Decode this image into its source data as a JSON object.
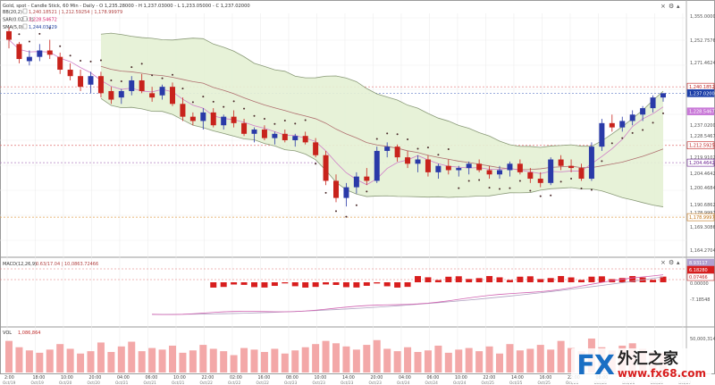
{
  "header": {
    "title": "Gold, spot - Candle Stick, 60 Min - Daily - O 1,235.28000 - H 1,237.03000 - L 1,233.05000 - C 1,237.02000",
    "indicators": [
      {
        "label": "BB(20,2)",
        "values": "1,240.18521 | 1,212.59254 | 1,178.99979",
        "color": "#b04040"
      },
      {
        "label": "SAR(0.02,0.2)",
        "values": "1,228.54672",
        "color": "#d81e6a"
      },
      {
        "label": "SMA(5,0)",
        "values": "1,244.03429",
        "color": "#2040a0"
      }
    ],
    "icon_names": [
      "close-icon",
      "gear-icon",
      "eye-icon"
    ]
  },
  "main_panel": {
    "price_labels": [
      "1,355.00006",
      "1,252.75767",
      "1,271.46246",
      "1,252.01216",
      "1,240.18521",
      "1,237.02000",
      "1,228.54672",
      "1,219.91021",
      "1,212.59254",
      "1,204.46429",
      "1,200.46845",
      "1,190.68622",
      "1,178.99979",
      "1,169.30863",
      "1,164.27044"
    ],
    "tags": [
      {
        "text": "1,240.18521",
        "bg": "#ffffff",
        "fg": "#c02020",
        "border": "#c02020"
      },
      {
        "text": "1,237.02000",
        "bg": "#1c3fa8",
        "fg": "#ffffff",
        "border": "#1c3fa8"
      },
      {
        "text": "1,228.54672",
        "bg": "#c97ad8",
        "fg": "#ffffff",
        "border": "#c97ad8"
      },
      {
        "text": "1,212.59254",
        "bg": "#ffffff",
        "fg": "#c02020",
        "border": "#c02020"
      },
      {
        "text": "1,204.46429",
        "bg": "#ffffff",
        "fg": "#6a1f8f",
        "border": "#6a1f8f"
      },
      {
        "text": "1,178.99979",
        "bg": "#ffffff",
        "fg": "#c07010",
        "border": "#c07010"
      }
    ]
  },
  "macd_panel": {
    "title": "MACD(12,26,9)",
    "values": "0.63/17.04 | 10,0863.72466",
    "scale_labels": [
      "4.1635",
      "0.00000",
      "-7.18548"
    ],
    "tags": [
      {
        "text": "8.93117",
        "bg": "#b0a0d0",
        "fg": "#ffffff"
      },
      {
        "text": "6.18280",
        "bg": "#d81e1e",
        "fg": "#ffffff"
      },
      {
        "text": "0.07466",
        "bg": "#ffffff",
        "fg": "#c02020"
      }
    ],
    "icon_names": [
      "close-icon",
      "gear-icon",
      "eye-icon"
    ]
  },
  "volume_panel": {
    "title": "VOL",
    "value": "1,086,864",
    "scale_labels": [
      "50,000,314"
    ]
  },
  "x_axis": {
    "labels": [
      {
        "time": "2:00",
        "date": "Oct/19"
      },
      {
        "time": "18:00",
        "date": "Oct/19"
      },
      {
        "time": "10:00",
        "date": "Oct/20"
      },
      {
        "time": "20:00",
        "date": "Oct/20"
      },
      {
        "time": "04:00",
        "date": "Oct/21"
      },
      {
        "time": "06:00",
        "date": "Oct/21"
      },
      {
        "time": "10:00",
        "date": "Oct/21"
      },
      {
        "time": "22:00",
        "date": "Oct/22"
      },
      {
        "time": "02:00",
        "date": "Oct/22"
      },
      {
        "time": "16:00",
        "date": "Oct/22"
      },
      {
        "time": "08:00",
        "date": "Oct/23"
      },
      {
        "time": "10:00",
        "date": "Oct/23"
      },
      {
        "time": "14:00",
        "date": "Oct/23"
      },
      {
        "time": "20:00",
        "date": "Oct/23"
      },
      {
        "time": "04:00",
        "date": "Oct/24"
      },
      {
        "time": "06:00",
        "date": "Oct/24"
      },
      {
        "time": "10:00",
        "date": "Oct/24"
      },
      {
        "time": "22:00",
        "date": "Oct/25"
      },
      {
        "time": "14:00",
        "date": "Oct/25"
      },
      {
        "time": "16:00",
        "date": "Oct/25"
      },
      {
        "time": "22:00",
        "date": "Oct/26"
      },
      {
        "time": "08:00",
        "date": "Oct/26"
      },
      {
        "time": "14:00",
        "date": "Oct/26"
      },
      {
        "time": "02:00",
        "date": "Oct/26"
      },
      {
        "time": "14:00",
        "date": "Oct/27"
      }
    ]
  },
  "watermark": {
    "fx": "FX",
    "cn": "外汇之家",
    "url": "www.fx68.com"
  },
  "colors": {
    "bull": "#2a3aa8",
    "bear": "#c8231c",
    "band_fill": "#e4f1d4",
    "band_line": "#8a9a78",
    "sar": "#4a2a2a",
    "sma": "#d080c8",
    "mid": "#b07070",
    "volume": "#f3a8a8",
    "macd_hist": "#d81e1e",
    "macd_line": "#d060b0",
    "macd_signal": "#b0a0c0",
    "grid_red": "#e07070"
  },
  "chart_data": {
    "type": "candlestick",
    "y_range": [
      1164,
      1271
    ],
    "candles": [
      [
        1266,
        1268,
        1258,
        1262
      ],
      [
        1260,
        1261,
        1251,
        1253
      ],
      [
        1252,
        1257,
        1250,
        1254
      ],
      [
        1254,
        1260,
        1252,
        1257
      ],
      [
        1257,
        1262,
        1253,
        1255
      ],
      [
        1254,
        1256,
        1246,
        1248
      ],
      [
        1248,
        1251,
        1243,
        1245
      ],
      [
        1245,
        1248,
        1238,
        1240
      ],
      [
        1241,
        1247,
        1237,
        1245
      ],
      [
        1245,
        1247,
        1235,
        1237
      ],
      [
        1238,
        1240,
        1232,
        1234
      ],
      [
        1235,
        1239,
        1232,
        1238
      ],
      [
        1238,
        1245,
        1236,
        1243
      ],
      [
        1243,
        1246,
        1237,
        1238
      ],
      [
        1237,
        1240,
        1233,
        1235
      ],
      [
        1236,
        1241,
        1234,
        1240
      ],
      [
        1240,
        1242,
        1231,
        1232
      ],
      [
        1232,
        1235,
        1224,
        1226
      ],
      [
        1226,
        1228,
        1222,
        1224
      ],
      [
        1224,
        1230,
        1220,
        1228
      ],
      [
        1228,
        1230,
        1221,
        1222
      ],
      [
        1222,
        1227,
        1220,
        1226
      ],
      [
        1226,
        1229,
        1221,
        1223
      ],
      [
        1223,
        1225,
        1217,
        1218
      ],
      [
        1218,
        1221,
        1214,
        1220
      ],
      [
        1220,
        1222,
        1215,
        1216
      ],
      [
        1216,
        1219,
        1213,
        1218
      ],
      [
        1218,
        1220,
        1214,
        1215
      ],
      [
        1215,
        1218,
        1212,
        1217
      ],
      [
        1217,
        1219,
        1213,
        1214
      ],
      [
        1214,
        1216,
        1207,
        1208
      ],
      [
        1208,
        1210,
        1194,
        1196
      ],
      [
        1196,
        1199,
        1186,
        1188
      ],
      [
        1188,
        1195,
        1184,
        1193
      ],
      [
        1193,
        1200,
        1190,
        1198
      ],
      [
        1198,
        1202,
        1194,
        1196
      ],
      [
        1196,
        1212,
        1195,
        1210
      ],
      [
        1210,
        1214,
        1207,
        1212
      ],
      [
        1212,
        1213,
        1205,
        1207
      ],
      [
        1207,
        1210,
        1202,
        1204
      ],
      [
        1204,
        1208,
        1200,
        1206
      ],
      [
        1206,
        1208,
        1198,
        1200
      ],
      [
        1200,
        1204,
        1197,
        1203
      ],
      [
        1203,
        1206,
        1199,
        1201
      ],
      [
        1201,
        1203,
        1198,
        1202
      ],
      [
        1202,
        1205,
        1199,
        1204
      ],
      [
        1204,
        1206,
        1200,
        1201
      ],
      [
        1201,
        1203,
        1197,
        1199
      ],
      [
        1199,
        1203,
        1197,
        1201
      ],
      [
        1201,
        1205,
        1198,
        1204
      ],
      [
        1204,
        1206,
        1199,
        1200
      ],
      [
        1200,
        1202,
        1195,
        1197
      ],
      [
        1197,
        1200,
        1193,
        1195
      ],
      [
        1195,
        1207,
        1194,
        1206
      ],
      [
        1206,
        1208,
        1201,
        1203
      ],
      [
        1203,
        1206,
        1200,
        1202
      ],
      [
        1202,
        1204,
        1196,
        1197
      ],
      [
        1197,
        1214,
        1196,
        1212
      ],
      [
        1212,
        1225,
        1210,
        1223
      ],
      [
        1223,
        1227,
        1219,
        1221
      ],
      [
        1221,
        1226,
        1219,
        1224
      ],
      [
        1224,
        1229,
        1222,
        1227
      ],
      [
        1227,
        1231,
        1224,
        1230
      ],
      [
        1230,
        1236,
        1228,
        1235
      ],
      [
        1235,
        1237,
        1233,
        1237
      ]
    ],
    "volume": [
      4.0,
      3.2,
      2.8,
      2.5,
      2.9,
      3.6,
      3.0,
      2.4,
      2.7,
      3.8,
      2.6,
      3.3,
      3.9,
      2.7,
      3.1,
      2.9,
      3.4,
      2.5,
      2.8,
      3.5,
      3.0,
      2.7,
      2.2,
      3.1,
      2.9,
      2.6,
      3.0,
      2.4,
      2.8,
      3.2,
      3.6,
      4.0,
      3.7,
      3.3,
      2.9,
      3.5,
      4.1,
      3.0,
      2.7,
      3.2,
      2.6,
      2.8,
      3.4,
      2.5,
      2.9,
      3.1,
      2.7,
      3.3,
      2.4,
      3.6,
      2.8,
      3.0,
      3.5,
      2.9,
      4.0,
      3.1,
      2.7,
      4.3,
      3.2,
      2.8,
      3.4,
      3.7,
      3.0,
      2.6,
      2.5
    ]
  }
}
